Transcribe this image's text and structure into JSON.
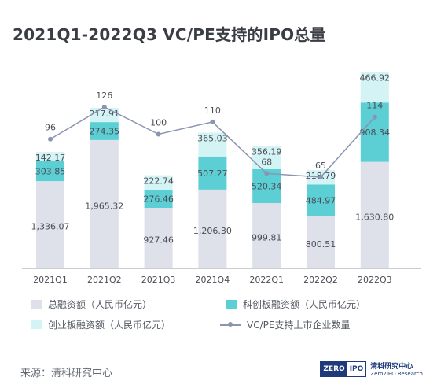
{
  "title": "2021Q1-2022Q3 VC/PE支持的IPO总量",
  "colors": {
    "total": "#dfe1ea",
    "star": "#5ccfd4",
    "chinext": "#d4f3f4",
    "line": "#8b94b0"
  },
  "chart_data": {
    "type": "bar",
    "stacked": true,
    "categories": [
      "2021Q1",
      "2021Q2",
      "2021Q3",
      "2021Q4",
      "2022Q1",
      "2022Q2",
      "2022Q3"
    ],
    "series": [
      {
        "name": "总融资额（人民币亿元）",
        "values": [
          1336.07,
          1965.32,
          927.46,
          1206.3,
          999.81,
          800.51,
          1630.8
        ],
        "labels": [
          "1,336.07",
          "1,965.32",
          "927.46",
          "1,206.30",
          "999.81",
          "800.51",
          "1,630.80"
        ]
      },
      {
        "name": "科创板融资额（人民币亿元）",
        "values": [
          303.85,
          274.35,
          276.46,
          507.27,
          520.34,
          484.97,
          908.34
        ],
        "labels": [
          "303.85",
          "274.35",
          "276.46",
          "507.27",
          "520.34",
          "484.97",
          "908.34"
        ]
      },
      {
        "name": "创业板融资额（人民币亿元）",
        "values": [
          142.17,
          217.91,
          222.74,
          365.03,
          356.19,
          218.79,
          466.92
        ],
        "labels": [
          "142.17",
          "217.91",
          "222.74",
          "365.03",
          "356.19",
          "218.79",
          "466.92"
        ]
      }
    ],
    "line": {
      "name": "VC/PE支持上市企业数量",
      "values": [
        96,
        126,
        100,
        110,
        68,
        65,
        114
      ]
    }
  },
  "footer": {
    "source": "来源：清科研究中心",
    "logo_zero": "ZERO",
    "logo_ipo": "IPO",
    "logo_cn": "清科研究中心",
    "logo_en": "Zero2IPO Research"
  }
}
